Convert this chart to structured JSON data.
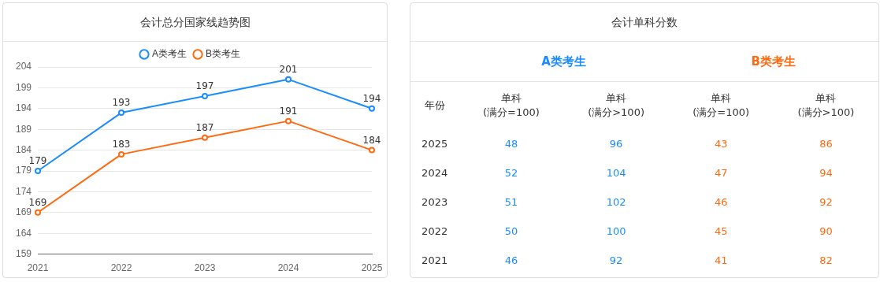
{
  "chart_data": [
    {
      "type": "line",
      "title": "会计总分国家线趋势图",
      "categories": [
        "2021",
        "2022",
        "2023",
        "2024",
        "2025"
      ],
      "series": [
        {
          "name": "A类考生",
          "color": "#1a8cff",
          "values": [
            179,
            193,
            197,
            201,
            194
          ]
        },
        {
          "name": "B类考生",
          "color": "#ff6a10",
          "values": [
            169,
            183,
            187,
            191,
            184
          ]
        }
      ],
      "ylim": [
        159,
        204
      ],
      "yticks": [
        159,
        164,
        169,
        174,
        179,
        184,
        189,
        194,
        199,
        204
      ],
      "grid": "y",
      "legend": "top",
      "marker": "circle",
      "line_style": "solid",
      "data_labels": true
    },
    {
      "type": "heatmap",
      "title": "会计单科分数",
      "categories": [
        "单科\n(满分=100)",
        "单科\n(满分>100)",
        "单科\n(满分=100)",
        "单科\n(满分>100)"
      ],
      "y_categories": [
        "2025",
        "2024",
        "2023",
        "2022",
        "2021"
      ],
      "annotations": [
        "年份",
        "A类考生",
        "B类考生"
      ],
      "colors": [
        "#1a8cff",
        "#1a8cff",
        "#ff6a10",
        "#ff6a10"
      ],
      "cells": [
        [
          48,
          96,
          43,
          86
        ],
        [
          52,
          104,
          47,
          94
        ],
        [
          51,
          102,
          46,
          92
        ],
        [
          50,
          100,
          45,
          90
        ],
        [
          46,
          92,
          41,
          82
        ]
      ],
      "data_labels": true
    }
  ]
}
